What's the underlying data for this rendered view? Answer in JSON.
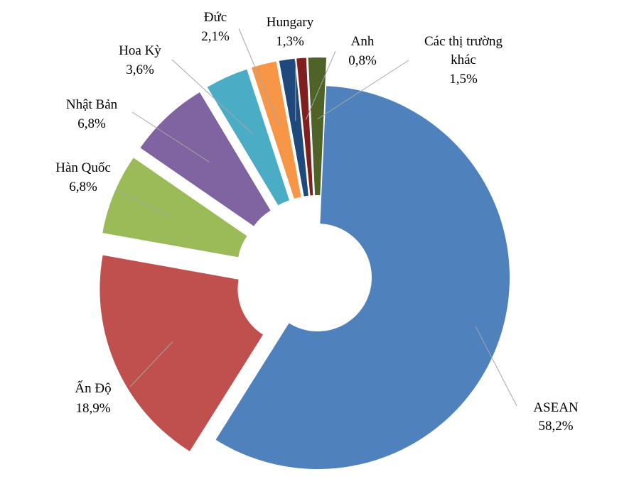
{
  "chart_data": {
    "type": "pie",
    "variant": "exploded-donut",
    "title": "",
    "slices": [
      {
        "name": "ASEAN",
        "value": 58.2,
        "label": "58,2%",
        "color": "#4f81bd"
      },
      {
        "name": "Ấn Độ",
        "value": 18.9,
        "label": "18,9%",
        "color": "#c0504d"
      },
      {
        "name": "Hàn Quốc",
        "value": 6.8,
        "label": "6,8%",
        "color": "#9bbb59"
      },
      {
        "name": "Nhật Bản",
        "value": 6.8,
        "label": "6,8%",
        "color": "#8064a2"
      },
      {
        "name": "Hoa Kỳ",
        "value": 3.6,
        "label": "3,6%",
        "color": "#4bacc6"
      },
      {
        "name": "Đức",
        "value": 2.1,
        "label": "2,1%",
        "color": "#f79646"
      },
      {
        "name": "Hungary",
        "value": 1.3,
        "label": "1,3%",
        "color": "#1f497d"
      },
      {
        "name": "Anh",
        "value": 0.8,
        "label": "0,8%",
        "color": "#7f1f1f"
      },
      {
        "name": "Các thị trường khác",
        "name_lines": [
          "Các thị trường",
          "khác"
        ],
        "value": 1.5,
        "label": "1,5%",
        "color": "#4f6228"
      }
    ]
  }
}
